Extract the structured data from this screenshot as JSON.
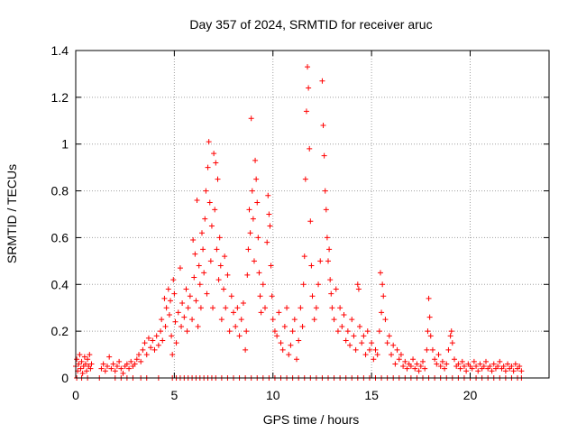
{
  "chart_data": {
    "type": "scatter",
    "title": "Day 357 of 2024, SRMTID for receiver aruc",
    "xlabel": "GPS time / hours",
    "ylabel": "SRMTID / TECUs",
    "xlim": [
      0,
      24
    ],
    "ylim": [
      0,
      1.4
    ],
    "xticks": [
      0,
      5,
      10,
      15,
      20
    ],
    "yticks": [
      0,
      0.2,
      0.4,
      0.6,
      0.8,
      1,
      1.2,
      1.4
    ],
    "xtick_labels": [
      "0",
      "5",
      "10",
      "15",
      "20"
    ],
    "ytick_labels": [
      "0",
      "0.2",
      "0.4",
      "0.6",
      "0.8",
      "1",
      "1.2",
      "1.4"
    ],
    "grid": true,
    "marker": "+",
    "color": "#ff0000",
    "series": [
      {
        "name": "SRMTID",
        "points": [
          [
            0.0,
            0.05
          ],
          [
            0.05,
            0.08
          ],
          [
            0.1,
            0.03
          ],
          [
            0.15,
            0.06
          ],
          [
            0.2,
            0.1
          ],
          [
            0.25,
            0.04
          ],
          [
            0.3,
            0.07
          ],
          [
            0.35,
            0.02
          ],
          [
            0.4,
            0.05
          ],
          [
            0.45,
            0.09
          ],
          [
            0.5,
            0.06
          ],
          [
            0.55,
            0.03
          ],
          [
            0.6,
            0.08
          ],
          [
            0.65,
            0.05
          ],
          [
            0.7,
            0.1
          ],
          [
            0.75,
            0.04
          ],
          [
            0.8,
            0.06
          ],
          [
            1.3,
            0.04
          ],
          [
            1.4,
            0.06
          ],
          [
            1.5,
            0.03
          ],
          [
            1.6,
            0.05
          ],
          [
            1.7,
            0.09
          ],
          [
            1.8,
            0.04
          ],
          [
            1.9,
            0.06
          ],
          [
            2.0,
            0.03
          ],
          [
            2.1,
            0.05
          ],
          [
            2.2,
            0.07
          ],
          [
            2.3,
            0.04
          ],
          [
            2.4,
            0.02
          ],
          [
            2.5,
            0.05
          ],
          [
            2.6,
            0.06
          ],
          [
            2.7,
            0.04
          ],
          [
            2.8,
            0.07
          ],
          [
            2.9,
            0.05
          ],
          [
            3.0,
            0.06
          ],
          [
            3.1,
            0.08
          ],
          [
            3.2,
            0.1
          ],
          [
            3.3,
            0.07
          ],
          [
            3.4,
            0.12
          ],
          [
            3.5,
            0.15
          ],
          [
            3.6,
            0.1
          ],
          [
            3.7,
            0.17
          ],
          [
            3.8,
            0.13
          ],
          [
            3.9,
            0.16
          ],
          [
            4.0,
            0.12
          ],
          [
            4.1,
            0.18
          ],
          [
            4.2,
            0.14
          ],
          [
            4.3,
            0.2
          ],
          [
            4.35,
            0.25
          ],
          [
            4.4,
            0.16
          ],
          [
            4.5,
            0.34
          ],
          [
            4.55,
            0.22
          ],
          [
            4.6,
            0.3
          ],
          [
            4.7,
            0.38
          ],
          [
            4.75,
            0.27
          ],
          [
            4.8,
            0.33
          ],
          [
            4.85,
            0.18
          ],
          [
            4.9,
            0.1
          ],
          [
            4.95,
            0.42
          ],
          [
            5.0,
            0.36
          ],
          [
            5.05,
            0.24
          ],
          [
            5.1,
            0.15
          ],
          [
            5.2,
            0.28
          ],
          [
            5.3,
            0.47
          ],
          [
            5.35,
            0.22
          ],
          [
            5.4,
            0.32
          ],
          [
            5.5,
            0.26
          ],
          [
            5.6,
            0.38
          ],
          [
            5.65,
            0.2
          ],
          [
            5.7,
            0.3
          ],
          [
            5.8,
            0.35
          ],
          [
            5.9,
            0.25
          ],
          [
            5.95,
            0.59
          ],
          [
            6.0,
            0.43
          ],
          [
            6.05,
            0.53
          ],
          [
            6.1,
            0.33
          ],
          [
            6.15,
            0.76
          ],
          [
            6.2,
            0.22
          ],
          [
            6.25,
            0.48
          ],
          [
            6.3,
            0.4
          ],
          [
            6.35,
            0.3
          ],
          [
            6.4,
            0.62
          ],
          [
            6.45,
            0.55
          ],
          [
            6.5,
            0.45
          ],
          [
            6.55,
            0.68
          ],
          [
            6.6,
            0.8
          ],
          [
            6.65,
            0.36
          ],
          [
            6.7,
            0.9
          ],
          [
            6.75,
            1.01
          ],
          [
            6.8,
            0.75
          ],
          [
            6.85,
            0.5
          ],
          [
            6.9,
            0.65
          ],
          [
            6.95,
            0.3
          ],
          [
            7.0,
            0.96
          ],
          [
            7.05,
            0.72
          ],
          [
            7.1,
            0.92
          ],
          [
            7.15,
            0.55
          ],
          [
            7.2,
            0.85
          ],
          [
            7.25,
            0.42
          ],
          [
            7.3,
            0.6
          ],
          [
            7.35,
            0.48
          ],
          [
            7.4,
            0.25
          ],
          [
            7.5,
            0.38
          ],
          [
            7.55,
            0.52
          ],
          [
            7.6,
            0.3
          ],
          [
            7.7,
            0.44
          ],
          [
            7.8,
            0.2
          ],
          [
            7.9,
            0.35
          ],
          [
            8.0,
            0.28
          ],
          [
            8.1,
            0.22
          ],
          [
            8.2,
            0.3
          ],
          [
            8.3,
            0.18
          ],
          [
            8.4,
            0.25
          ],
          [
            8.5,
            0.32
          ],
          [
            8.6,
            0.12
          ],
          [
            8.65,
            0.2
          ],
          [
            8.7,
            0.44
          ],
          [
            8.75,
            0.55
          ],
          [
            8.8,
            0.72
          ],
          [
            8.85,
            0.62
          ],
          [
            8.9,
            1.11
          ],
          [
            8.95,
            0.8
          ],
          [
            9.0,
            0.68
          ],
          [
            9.05,
            0.5
          ],
          [
            9.1,
            0.93
          ],
          [
            9.15,
            0.85
          ],
          [
            9.2,
            0.75
          ],
          [
            9.25,
            0.6
          ],
          [
            9.3,
            0.45
          ],
          [
            9.35,
            0.35
          ],
          [
            9.4,
            0.28
          ],
          [
            9.5,
            0.4
          ],
          [
            9.6,
            0.3
          ],
          [
            9.7,
            0.58
          ],
          [
            9.75,
            0.78
          ],
          [
            9.8,
            0.7
          ],
          [
            9.85,
            0.65
          ],
          [
            9.9,
            0.48
          ],
          [
            9.95,
            0.35
          ],
          [
            10.0,
            0.25
          ],
          [
            10.1,
            0.2
          ],
          [
            10.2,
            0.18
          ],
          [
            10.3,
            0.28
          ],
          [
            10.4,
            0.15
          ],
          [
            10.5,
            0.12
          ],
          [
            10.6,
            0.22
          ],
          [
            10.7,
            0.3
          ],
          [
            10.8,
            0.1
          ],
          [
            10.9,
            0.14
          ],
          [
            11.0,
            0.2
          ],
          [
            11.1,
            0.25
          ],
          [
            11.2,
            0.08
          ],
          [
            11.3,
            0.16
          ],
          [
            11.4,
            0.3
          ],
          [
            11.5,
            0.22
          ],
          [
            11.55,
            0.4
          ],
          [
            11.6,
            0.52
          ],
          [
            11.65,
            0.85
          ],
          [
            11.7,
            1.14
          ],
          [
            11.75,
            1.33
          ],
          [
            11.8,
            1.24
          ],
          [
            11.85,
            0.98
          ],
          [
            11.9,
            0.67
          ],
          [
            11.95,
            0.48
          ],
          [
            12.0,
            0.35
          ],
          [
            12.1,
            0.25
          ],
          [
            12.2,
            0.3
          ],
          [
            12.3,
            0.4
          ],
          [
            12.4,
            0.5
          ],
          [
            12.5,
            1.27
          ],
          [
            12.55,
            1.08
          ],
          [
            12.6,
            0.95
          ],
          [
            12.65,
            0.8
          ],
          [
            12.7,
            0.72
          ],
          [
            12.75,
            0.6
          ],
          [
            12.8,
            0.5
          ],
          [
            12.85,
            0.55
          ],
          [
            12.9,
            0.42
          ],
          [
            12.95,
            0.36
          ],
          [
            13.0,
            0.3
          ],
          [
            13.1,
            0.25
          ],
          [
            13.2,
            0.38
          ],
          [
            13.3,
            0.2
          ],
          [
            13.4,
            0.3
          ],
          [
            13.5,
            0.22
          ],
          [
            13.6,
            0.27
          ],
          [
            13.7,
            0.16
          ],
          [
            13.8,
            0.2
          ],
          [
            13.9,
            0.14
          ],
          [
            14.0,
            0.25
          ],
          [
            14.1,
            0.18
          ],
          [
            14.2,
            0.12
          ],
          [
            14.3,
            0.4
          ],
          [
            14.35,
            0.38
          ],
          [
            14.4,
            0.22
          ],
          [
            14.5,
            0.15
          ],
          [
            14.6,
            0.18
          ],
          [
            14.7,
            0.1
          ],
          [
            14.8,
            0.2
          ],
          [
            14.9,
            0.12
          ],
          [
            15.0,
            0.15
          ],
          [
            15.1,
            0.08
          ],
          [
            15.2,
            0.12
          ],
          [
            15.3,
            0.1
          ],
          [
            15.4,
            0.2
          ],
          [
            15.45,
            0.45
          ],
          [
            15.5,
            0.28
          ],
          [
            15.55,
            0.4
          ],
          [
            15.6,
            0.35
          ],
          [
            15.7,
            0.25
          ],
          [
            15.8,
            0.15
          ],
          [
            15.9,
            0.18
          ],
          [
            16.0,
            0.1
          ],
          [
            16.1,
            0.14
          ],
          [
            16.2,
            0.06
          ],
          [
            16.3,
            0.12
          ],
          [
            16.4,
            0.08
          ],
          [
            16.5,
            0.1
          ],
          [
            16.6,
            0.05
          ],
          [
            16.7,
            0.07
          ],
          [
            16.8,
            0.04
          ],
          [
            16.9,
            0.06
          ],
          [
            17.0,
            0.05
          ],
          [
            17.1,
            0.08
          ],
          [
            17.2,
            0.04
          ],
          [
            17.3,
            0.06
          ],
          [
            17.4,
            0.03
          ],
          [
            17.5,
            0.05
          ],
          [
            17.6,
            0.07
          ],
          [
            17.7,
            0.04
          ],
          [
            17.8,
            0.12
          ],
          [
            17.85,
            0.2
          ],
          [
            17.9,
            0.34
          ],
          [
            17.95,
            0.26
          ],
          [
            18.0,
            0.18
          ],
          [
            18.1,
            0.12
          ],
          [
            18.2,
            0.08
          ],
          [
            18.3,
            0.06
          ],
          [
            18.4,
            0.1
          ],
          [
            18.5,
            0.05
          ],
          [
            18.6,
            0.07
          ],
          [
            18.7,
            0.04
          ],
          [
            18.8,
            0.06
          ],
          [
            18.9,
            0.12
          ],
          [
            19.0,
            0.18
          ],
          [
            19.05,
            0.2
          ],
          [
            19.1,
            0.15
          ],
          [
            19.2,
            0.08
          ],
          [
            19.3,
            0.05
          ],
          [
            19.4,
            0.06
          ],
          [
            19.5,
            0.04
          ],
          [
            19.6,
            0.07
          ],
          [
            19.7,
            0.05
          ],
          [
            19.8,
            0.03
          ],
          [
            19.9,
            0.06
          ],
          [
            20.0,
            0.05
          ],
          [
            20.1,
            0.04
          ],
          [
            20.2,
            0.07
          ],
          [
            20.3,
            0.05
          ],
          [
            20.4,
            0.03
          ],
          [
            20.5,
            0.06
          ],
          [
            20.6,
            0.04
          ],
          [
            20.7,
            0.05
          ],
          [
            20.8,
            0.07
          ],
          [
            20.9,
            0.04
          ],
          [
            21.0,
            0.05
          ],
          [
            21.1,
            0.03
          ],
          [
            21.2,
            0.06
          ],
          [
            21.3,
            0.04
          ],
          [
            21.4,
            0.05
          ],
          [
            21.5,
            0.07
          ],
          [
            21.6,
            0.04
          ],
          [
            21.7,
            0.05
          ],
          [
            21.8,
            0.03
          ],
          [
            21.9,
            0.06
          ],
          [
            22.0,
            0.04
          ],
          [
            22.1,
            0.05
          ],
          [
            22.2,
            0.03
          ],
          [
            22.3,
            0.06
          ],
          [
            22.4,
            0.04
          ],
          [
            22.5,
            0.05
          ],
          [
            22.6,
            0.03
          ]
        ]
      }
    ],
    "zero_level_samples": {
      "description": "many samples at zero",
      "xs": [
        0.05,
        0.3,
        0.6,
        1.2,
        2.0,
        2.3,
        2.6,
        2.9,
        3.3,
        3.6,
        4.2,
        4.9,
        5.1,
        5.3,
        5.5,
        5.7,
        5.9,
        6.1,
        6.3,
        6.5,
        6.7,
        6.9,
        7.1,
        7.4,
        7.7,
        8.0,
        8.3,
        8.6,
        8.9,
        9.2,
        9.5,
        9.8,
        10.1,
        10.4,
        10.7,
        11.0,
        11.3,
        11.6,
        11.9,
        12.2,
        12.5,
        12.8,
        13.1,
        13.4,
        13.7,
        14.0,
        14.3,
        14.6,
        14.9,
        15.2,
        15.5,
        15.8,
        16.1,
        16.4,
        16.7,
        17.0,
        17.3,
        17.6,
        17.9,
        18.2,
        18.5,
        18.8,
        19.1,
        19.4,
        19.7,
        20.0,
        20.3,
        20.6,
        20.9,
        21.2,
        21.5,
        21.8,
        22.1,
        22.4,
        22.6
      ]
    }
  }
}
